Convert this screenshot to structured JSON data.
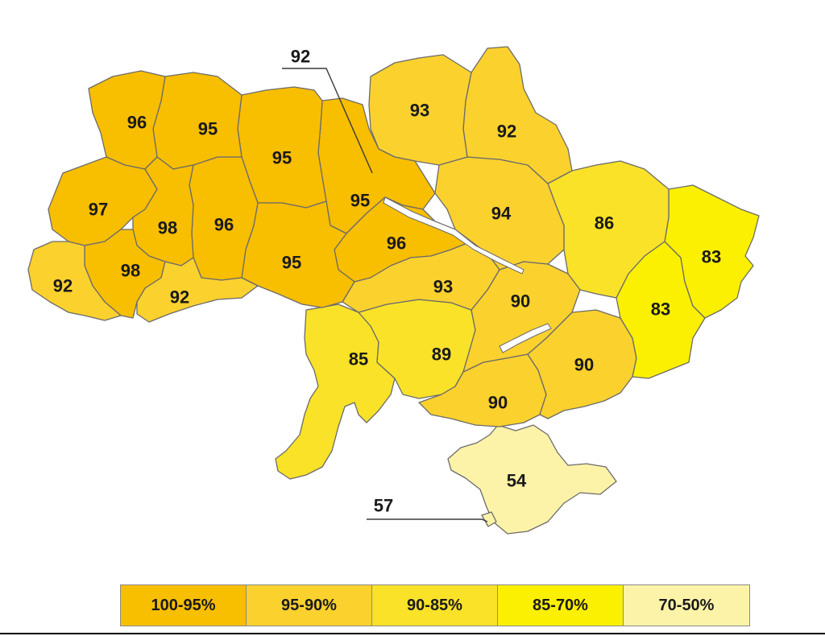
{
  "colors": {
    "c100_95": "#f8be00",
    "c95_90": "#fbd12e",
    "c90_85": "#f9e228",
    "c85_70": "#fbf000",
    "c70_50": "#fdf3a8"
  },
  "regions": [
    {
      "id": "volyn",
      "value": "96",
      "category": "c100_95"
    },
    {
      "id": "rivne",
      "value": "95",
      "category": "c100_95"
    },
    {
      "id": "zhytomyr",
      "value": "95",
      "category": "c100_95"
    },
    {
      "id": "kyiv-oblast",
      "value": "95",
      "category": "c100_95"
    },
    {
      "id": "kyiv-city",
      "value": "92",
      "category": "c95_90"
    },
    {
      "id": "chernihiv",
      "value": "93",
      "category": "c95_90"
    },
    {
      "id": "sumy",
      "value": "92",
      "category": "c95_90"
    },
    {
      "id": "lviv",
      "value": "97",
      "category": "c100_95"
    },
    {
      "id": "ternopil",
      "value": "98",
      "category": "c100_95"
    },
    {
      "id": "khmelnytskyi",
      "value": "96",
      "category": "c100_95"
    },
    {
      "id": "vinnytsia",
      "value": "95",
      "category": "c100_95"
    },
    {
      "id": "cherkasy",
      "value": "96",
      "category": "c100_95"
    },
    {
      "id": "poltava",
      "value": "94",
      "category": "c95_90"
    },
    {
      "id": "kharkiv",
      "value": "86",
      "category": "c90_85"
    },
    {
      "id": "luhansk",
      "value": "83",
      "category": "c85_70"
    },
    {
      "id": "donetsk",
      "value": "83",
      "category": "c85_70"
    },
    {
      "id": "zakarpattia",
      "value": "92",
      "category": "c95_90"
    },
    {
      "id": "ivano-frankivsk",
      "value": "98",
      "category": "c100_95"
    },
    {
      "id": "chernivtsi",
      "value": "92",
      "category": "c95_90"
    },
    {
      "id": "kirovohrad",
      "value": "93",
      "category": "c95_90"
    },
    {
      "id": "dnipropetrovsk",
      "value": "90",
      "category": "c95_90"
    },
    {
      "id": "odesa",
      "value": "85",
      "category": "c90_85"
    },
    {
      "id": "mykolaiv",
      "value": "89",
      "category": "c90_85"
    },
    {
      "id": "zaporizhzhia",
      "value": "90",
      "category": "c95_90"
    },
    {
      "id": "kherson",
      "value": "90",
      "category": "c95_90"
    },
    {
      "id": "crimea",
      "value": "54",
      "category": "c70_50"
    },
    {
      "id": "sevastopol",
      "value": "57",
      "category": "c70_50"
    }
  ],
  "legend": [
    {
      "label": "100-95%",
      "category": "c100_95"
    },
    {
      "label": "95-90%",
      "category": "c95_90"
    },
    {
      "label": "90-85%",
      "category": "c90_85"
    },
    {
      "label": "85-70%",
      "category": "c85_70"
    },
    {
      "label": "70-50%",
      "category": "c70_50"
    }
  ]
}
